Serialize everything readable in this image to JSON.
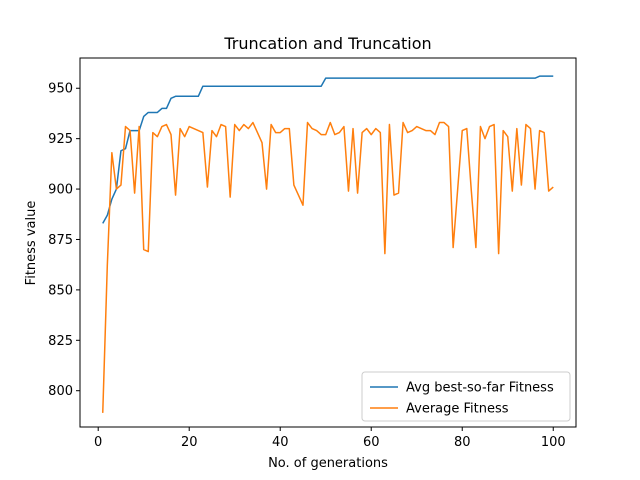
{
  "chart_data": {
    "type": "line",
    "title": "Truncation and Truncation",
    "xlabel": "No. of generations",
    "ylabel": "Fitness value",
    "xlim": [
      -4,
      105
    ],
    "ylim": [
      782,
      965
    ],
    "xticks": [
      0,
      20,
      40,
      60,
      80,
      100
    ],
    "yticks": [
      800,
      825,
      850,
      875,
      900,
      925,
      950
    ],
    "grid": false,
    "legend_position": "lower right",
    "series": [
      {
        "name": "Avg best-so-far Fitness",
        "color": "#1f77b4",
        "x": [
          1,
          2,
          3,
          4,
          5,
          6,
          7,
          8,
          9,
          10,
          11,
          12,
          13,
          14,
          15,
          16,
          17,
          18,
          19,
          20,
          21,
          22,
          23,
          24,
          25,
          26,
          27,
          28,
          29,
          30,
          31,
          32,
          33,
          34,
          35,
          36,
          37,
          38,
          39,
          40,
          41,
          42,
          43,
          44,
          45,
          46,
          47,
          48,
          49,
          50,
          51,
          52,
          53,
          54,
          55,
          56,
          57,
          58,
          59,
          60,
          61,
          62,
          63,
          64,
          65,
          66,
          67,
          68,
          69,
          70,
          71,
          72,
          73,
          74,
          75,
          76,
          77,
          78,
          79,
          80,
          81,
          82,
          83,
          84,
          85,
          86,
          87,
          88,
          89,
          90,
          91,
          92,
          93,
          94,
          95,
          96,
          97,
          98,
          99,
          100
        ],
        "values": [
          883,
          887,
          895,
          900,
          919,
          920,
          929,
          929,
          929,
          936,
          938,
          938,
          938,
          940,
          940,
          945,
          946,
          946,
          946,
          946,
          946,
          946,
          951,
          951,
          951,
          951,
          951,
          951,
          951,
          951,
          951,
          951,
          951,
          951,
          951,
          951,
          951,
          951,
          951,
          951,
          951,
          951,
          951,
          951,
          951,
          951,
          951,
          951,
          951,
          955,
          955,
          955,
          955,
          955,
          955,
          955,
          955,
          955,
          955,
          955,
          955,
          955,
          955,
          955,
          955,
          955,
          955,
          955,
          955,
          955,
          955,
          955,
          955,
          955,
          955,
          955,
          955,
          955,
          955,
          955,
          955,
          955,
          955,
          955,
          955,
          955,
          955,
          955,
          955,
          955,
          955,
          955,
          955,
          955,
          955,
          955,
          956,
          956,
          956,
          956
        ]
      },
      {
        "name": "Average Fitness",
        "color": "#ff7f0e",
        "x": [
          1,
          2,
          3,
          4,
          5,
          6,
          7,
          8,
          9,
          10,
          11,
          12,
          13,
          14,
          15,
          16,
          17,
          18,
          19,
          20,
          21,
          22,
          23,
          24,
          25,
          26,
          27,
          28,
          29,
          30,
          31,
          32,
          33,
          34,
          35,
          36,
          37,
          38,
          39,
          40,
          41,
          42,
          43,
          44,
          45,
          46,
          47,
          48,
          49,
          50,
          51,
          52,
          53,
          54,
          55,
          56,
          57,
          58,
          59,
          60,
          61,
          62,
          63,
          64,
          65,
          66,
          67,
          68,
          69,
          70,
          71,
          72,
          73,
          74,
          75,
          76,
          77,
          78,
          79,
          80,
          81,
          82,
          83,
          84,
          85,
          86,
          87,
          88,
          89,
          90,
          91,
          92,
          93,
          94,
          95,
          96,
          97,
          98,
          99,
          100
        ],
        "values": [
          789,
          862,
          918,
          900,
          902,
          931,
          929,
          898,
          931,
          870,
          869,
          928,
          926,
          931,
          932,
          927,
          897,
          930,
          926,
          931,
          930,
          929,
          928,
          901,
          929,
          926,
          932,
          931,
          896,
          932,
          929,
          932,
          930,
          933,
          928,
          923,
          900,
          932,
          928,
          928,
          930,
          930,
          902,
          897,
          892,
          933,
          930,
          929,
          927,
          927,
          933,
          927,
          928,
          931,
          899,
          930,
          898,
          928,
          930,
          927,
          930,
          928,
          868,
          932,
          897,
          898,
          933,
          928,
          929,
          931,
          930,
          929,
          929,
          927,
          933,
          933,
          931,
          871,
          900,
          929,
          930,
          899,
          871,
          931,
          925,
          931,
          932,
          868,
          929,
          926,
          899,
          930,
          902,
          932,
          930,
          900,
          929,
          928,
          899,
          901
        ]
      }
    ]
  }
}
